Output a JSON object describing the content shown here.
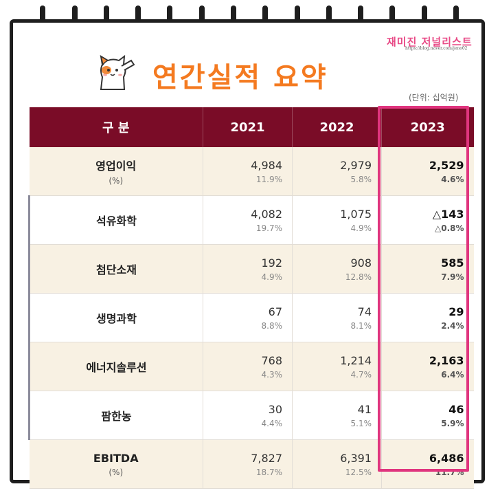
{
  "header": {
    "title": "연간실적 요약",
    "unit": "(단위: 십억원)",
    "watermark": "재미진 저널리스트",
    "watermark_url": "https://blog.naver.com/jeno02"
  },
  "table": {
    "columns": [
      "구 분",
      "2021",
      "2022",
      "2023"
    ],
    "highlight_column": "2023",
    "rows": [
      {
        "label": "영업이익",
        "sublabel": "(%)",
        "indent": false,
        "shaded": true,
        "cells": [
          {
            "v": "4,984",
            "p": "11.9%"
          },
          {
            "v": "2,979",
            "p": "5.8%"
          },
          {
            "v": "2,529",
            "p": "4.6%"
          }
        ]
      },
      {
        "label": "석유화학",
        "sublabel": "",
        "indent": true,
        "shaded": false,
        "cells": [
          {
            "v": "4,082",
            "p": "19.7%"
          },
          {
            "v": "1,075",
            "p": "4.9%"
          },
          {
            "v": "△143",
            "p": "△0.8%"
          }
        ]
      },
      {
        "label": "첨단소재",
        "sublabel": "",
        "indent": true,
        "shaded": true,
        "cells": [
          {
            "v": "192",
            "p": "4.9%"
          },
          {
            "v": "908",
            "p": "12.8%"
          },
          {
            "v": "585",
            "p": "7.9%"
          }
        ]
      },
      {
        "label": "생명과학",
        "sublabel": "",
        "indent": true,
        "shaded": false,
        "cells": [
          {
            "v": "67",
            "p": "8.8%"
          },
          {
            "v": "74",
            "p": "8.1%"
          },
          {
            "v": "29",
            "p": "2.4%"
          }
        ]
      },
      {
        "label": "에너지솔루션",
        "sublabel": "",
        "indent": true,
        "shaded": true,
        "cells": [
          {
            "v": "768",
            "p": "4.3%"
          },
          {
            "v": "1,214",
            "p": "4.7%"
          },
          {
            "v": "2,163",
            "p": "6.4%"
          }
        ]
      },
      {
        "label": "팜한농",
        "sublabel": "",
        "indent": true,
        "shaded": false,
        "cells": [
          {
            "v": "30",
            "p": "4.4%"
          },
          {
            "v": "41",
            "p": "5.1%"
          },
          {
            "v": "46",
            "p": "5.9%"
          }
        ]
      },
      {
        "label": "EBITDA",
        "sublabel": "(%)",
        "indent": false,
        "shaded": true,
        "cells": [
          {
            "v": "7,827",
            "p": "18.7%"
          },
          {
            "v": "6,391",
            "p": "12.5%"
          },
          {
            "v": "6,486",
            "p": "11.7%"
          }
        ]
      }
    ]
  },
  "colors": {
    "header_bg": "#7a0c27",
    "title": "#f47a20",
    "highlight": "#e0357e",
    "shaded_row": "#f8f1e3"
  },
  "icons": {
    "mascot": "cat-saluting-icon"
  }
}
